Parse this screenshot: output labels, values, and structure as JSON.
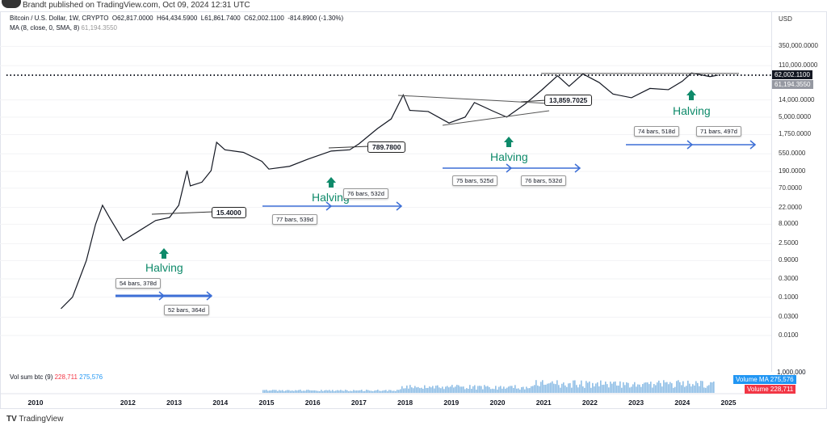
{
  "header": {
    "publisher": "Brandt published on TradingView.com, Oct 09, 2024 12:31 UTC"
  },
  "legend": {
    "symbol": "Bitcoin / U.S. Dollar, 1W, CRYPTO",
    "open": "O62,817.0000",
    "high": "H64,434.5900",
    "low": "L61,861.7400",
    "close": "C62,002.1100",
    "change": "-814.8900 (-1.30%)",
    "ma_label": "MA (8, close, 0, SMA, 8)",
    "ma_value": "61,194.3550"
  },
  "axis": {
    "currency": "USD",
    "ticks": [
      "350,000.0000",
      "110,000.0000",
      "14,000.0000",
      "5,000.0000",
      "1,750.0000",
      "550.0000",
      "190.0000",
      "70.0000",
      "22.0000",
      "8.0000",
      "2.5000",
      "0.9000",
      "0.3000",
      "0.1000",
      "0.0300",
      "0.0100"
    ],
    "tick_values": [
      350000,
      110000,
      14000,
      5000,
      1750,
      550,
      190,
      70,
      22,
      8,
      2.5,
      0.9,
      0.3,
      0.1,
      0.03,
      0.01
    ],
    "price_tag": "62,002.1100",
    "ma_tag_label": "MA",
    "ma_tag": "61,194.3550",
    "vol_top": "1,000,000"
  },
  "volume": {
    "label": "Vol sum btc (9)",
    "value": "228,711",
    "ma_value": "275,576",
    "ma_tag_label": "Volume MA",
    "vol_tag_label": "Volume",
    "ma_color": "#2196f3",
    "vol_color": "#f23645"
  },
  "footer": {
    "brand": "TradingView"
  },
  "chart_data": {
    "type": "line",
    "scale": "log",
    "xlabel": "",
    "ylabel": "",
    "x_ticks": [
      "2010",
      "2012",
      "2013",
      "2014",
      "2015",
      "2016",
      "2017",
      "2018",
      "2019",
      "2020",
      "2021",
      "2022",
      "2023",
      "2024",
      "2025"
    ],
    "series": [
      {
        "points": [
          [
            2010.55,
            0.05
          ],
          [
            2010.8,
            0.1
          ],
          [
            2010.95,
            0.3
          ],
          [
            2011.1,
            0.9
          ],
          [
            2011.3,
            8
          ],
          [
            2011.45,
            25
          ],
          [
            2011.6,
            12
          ],
          [
            2011.9,
            3
          ],
          [
            2012.2,
            5
          ],
          [
            2012.6,
            10
          ],
          [
            2012.9,
            12
          ],
          [
            2013.1,
            25
          ],
          [
            2013.28,
            200
          ],
          [
            2013.35,
            80
          ],
          [
            2013.6,
            100
          ],
          [
            2013.8,
            200
          ],
          [
            2013.92,
            1100
          ],
          [
            2014.1,
            700
          ],
          [
            2014.5,
            600
          ],
          [
            2014.9,
            350
          ],
          [
            2015.05,
            220
          ],
          [
            2015.5,
            260
          ],
          [
            2015.9,
            400
          ],
          [
            2016.4,
            650
          ],
          [
            2016.8,
            700
          ],
          [
            2017.0,
            1000
          ],
          [
            2017.4,
            2500
          ],
          [
            2017.7,
            4500
          ],
          [
            2017.96,
            19000
          ],
          [
            2018.1,
            7500
          ],
          [
            2018.5,
            7000
          ],
          [
            2018.95,
            3500
          ],
          [
            2019.3,
            5000
          ],
          [
            2019.5,
            12000
          ],
          [
            2019.9,
            7200
          ],
          [
            2020.2,
            5000
          ],
          [
            2020.6,
            11000
          ],
          [
            2020.95,
            25000
          ],
          [
            2021.3,
            60000
          ],
          [
            2021.55,
            32000
          ],
          [
            2021.85,
            67000
          ],
          [
            2022.2,
            40000
          ],
          [
            2022.5,
            20000
          ],
          [
            2022.9,
            16000
          ],
          [
            2023.3,
            28000
          ],
          [
            2023.7,
            26000
          ],
          [
            2024.0,
            43000
          ],
          [
            2024.2,
            71000
          ],
          [
            2024.6,
            57000
          ],
          [
            2024.77,
            62002
          ]
        ]
      }
    ],
    "ylim": [
      0.003,
      1000000
    ],
    "annotations": {
      "values": [
        "15.4000",
        "789.7800",
        "13,859.7025"
      ],
      "halving": "Halving",
      "bars": [
        "54 bars, 378d",
        "52 bars, 364d",
        "77 bars, 539d",
        "76 bars, 532d",
        "75 bars, 525d",
        "76 bars, 532d",
        "74 bars, 518d",
        "71 bars, 497d"
      ]
    }
  }
}
